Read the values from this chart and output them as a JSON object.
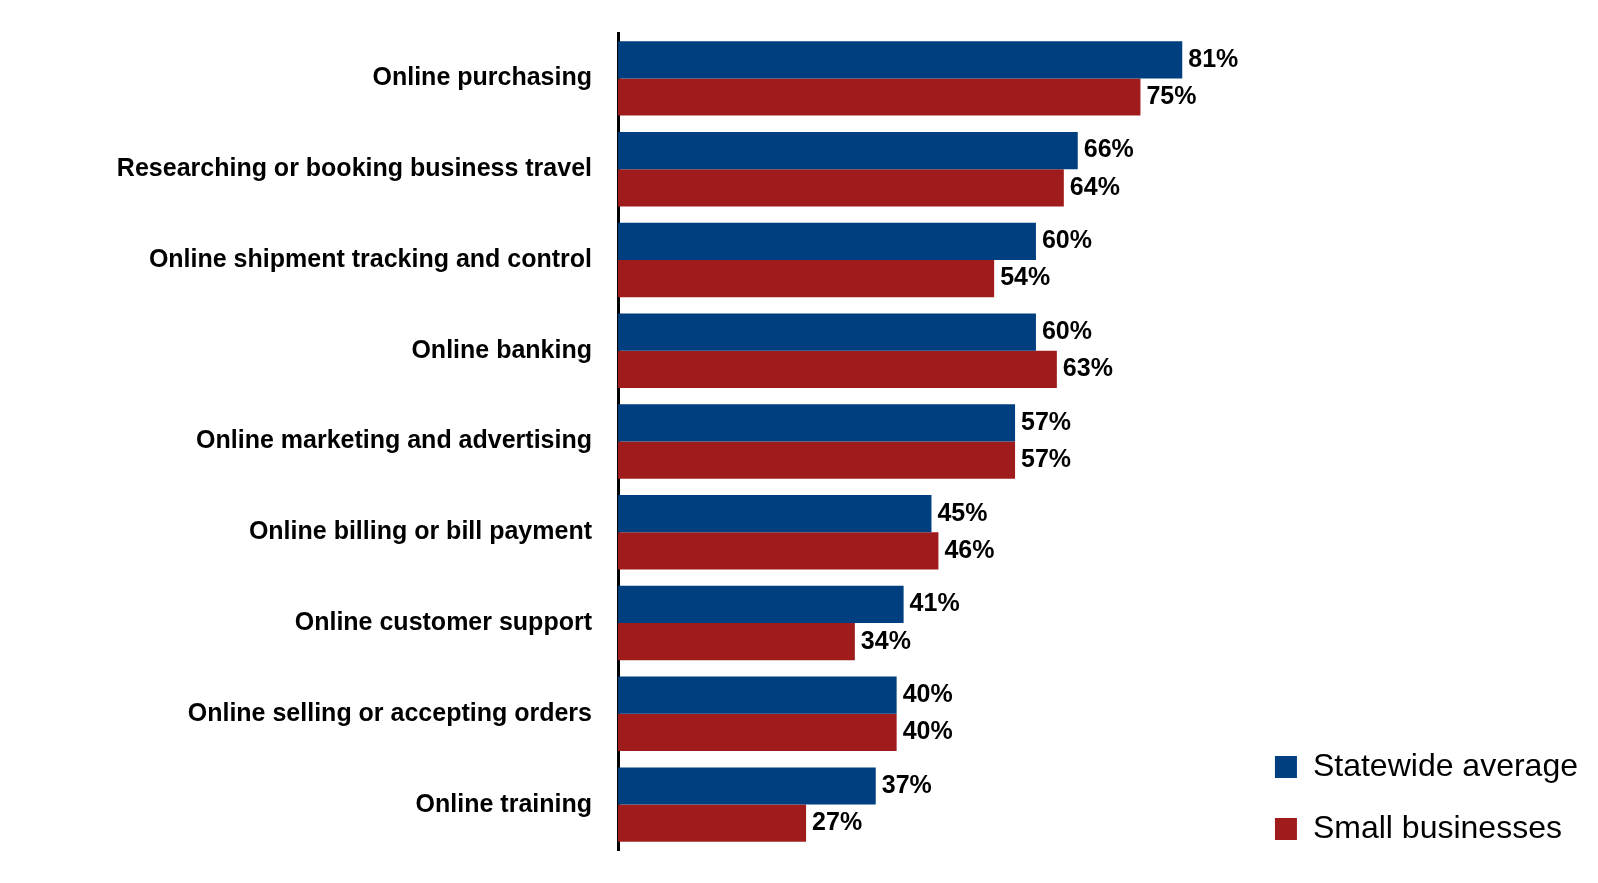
{
  "chart_data": {
    "type": "bar",
    "orientation": "horizontal",
    "categories": [
      "Online purchasing",
      "Researching or booking business travel",
      "Online shipment tracking and control",
      "Online banking",
      "Online marketing and advertising",
      "Online billing or bill payment",
      "Online customer support",
      "Online selling or accepting orders",
      "Online training"
    ],
    "series": [
      {
        "name": "Statewide average",
        "color": "#003f7f",
        "values": [
          81,
          66,
          60,
          60,
          57,
          45,
          41,
          40,
          37
        ],
        "value_labels": [
          "81%",
          "66%",
          "60%",
          "60%",
          "57%",
          "45%",
          "41%",
          "40%",
          "37%"
        ]
      },
      {
        "name": "Small businesses",
        "color": "#a01c1c",
        "values": [
          75,
          64,
          54,
          63,
          57,
          46,
          34,
          40,
          27
        ],
        "value_labels": [
          "75%",
          "64%",
          "54%",
          "63%",
          "57%",
          "46%",
          "34%",
          "40%",
          "27%"
        ]
      }
    ],
    "tick_labels": "y",
    "legend": "bottom right"
  }
}
